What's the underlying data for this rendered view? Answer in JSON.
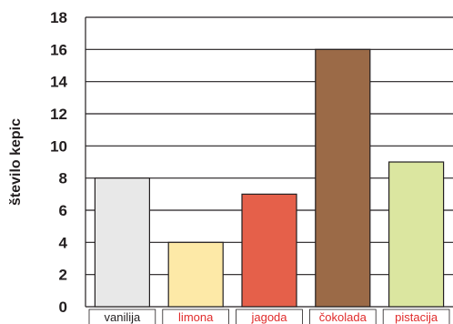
{
  "chart_data": {
    "type": "bar",
    "title": "",
    "xlabel": "",
    "ylabel": "število kepic",
    "ylim": [
      0,
      18
    ],
    "yticks": [
      0,
      2,
      4,
      6,
      8,
      10,
      12,
      14,
      16,
      18
    ],
    "grid": true,
    "categories": [
      "vanilija",
      "limona",
      "jagoda",
      "čokolada",
      "pistacija"
    ],
    "values": [
      8,
      4,
      7,
      16,
      9
    ],
    "bar_colors": [
      "#e8e8e8",
      "#fde9a7",
      "#e5604a",
      "#9b6a47",
      "#dbe6a0"
    ],
    "label_colors": [
      "#231f20",
      "#e02b2b",
      "#e02b2b",
      "#e02b2b",
      "#e02b2b"
    ],
    "grid_color": "#231f20",
    "bar_edge_color": "#231f20"
  }
}
